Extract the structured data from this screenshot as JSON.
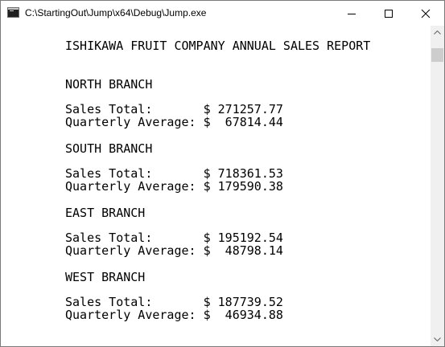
{
  "window": {
    "title": "C:\\StartingOut\\Jump\\x64\\Debug\\Jump.exe"
  },
  "console": {
    "lines": [
      "ISHIKAWA FRUIT COMPANY ANNUAL SALES REPORT",
      "NORTH BRANCH",
      "Sales Total:       $ 271257.77",
      "Quarterly Average: $  67814.44",
      "SOUTH BRANCH",
      "Sales Total:       $ 718361.53",
      "Quarterly Average: $ 179590.38",
      "EAST BRANCH",
      "Sales Total:       $ 195192.54",
      "Quarterly Average: $  48798.14",
      "WEST BRANCH",
      "Sales Total:       $ 187739.52",
      "Quarterly Average: $  46934.88"
    ]
  },
  "icons": {
    "app": "console-app-icon",
    "minimize": "minimize-icon",
    "maximize": "maximize-icon",
    "close": "close-icon",
    "scroll_up": "scroll-up-arrow-icon",
    "scroll_down": "scroll-down-arrow-icon"
  }
}
